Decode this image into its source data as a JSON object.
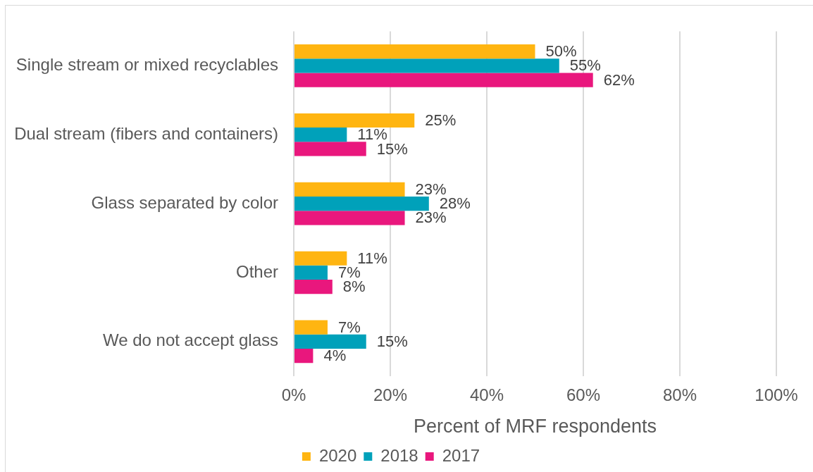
{
  "chart_data": {
    "type": "bar",
    "orientation": "horizontal",
    "categories": [
      "Single stream or mixed recyclables",
      "Dual stream (fibers and containers)",
      "Glass separated by color",
      "Other",
      "We do not accept glass"
    ],
    "series": [
      {
        "name": "2020",
        "color": "#ffb511",
        "values": [
          50,
          25,
          23,
          11,
          7
        ],
        "value_labels": [
          "50%",
          "25%",
          "23%",
          "11%",
          "7%"
        ]
      },
      {
        "name": "2018",
        "color": "#00a1ba",
        "values": [
          55,
          11,
          28,
          7,
          15
        ],
        "value_labels": [
          "55%",
          "11%",
          "28%",
          "7%",
          "15%"
        ]
      },
      {
        "name": "2017",
        "color": "#e9177d",
        "values": [
          62,
          15,
          23,
          8,
          4
        ],
        "value_labels": [
          "62%",
          "15%",
          "23%",
          "8%",
          "4%"
        ]
      }
    ],
    "xlabel": "Percent of MRF respondents",
    "xlim": [
      0,
      100
    ],
    "xticks": [
      {
        "value": 0,
        "label": "0%"
      },
      {
        "value": 20,
        "label": "20%"
      },
      {
        "value": 40,
        "label": "40%"
      },
      {
        "value": 60,
        "label": "60%"
      },
      {
        "value": 80,
        "label": "80%"
      },
      {
        "value": 100,
        "label": "100%"
      }
    ],
    "grid": "x",
    "legend": "bottom"
  }
}
